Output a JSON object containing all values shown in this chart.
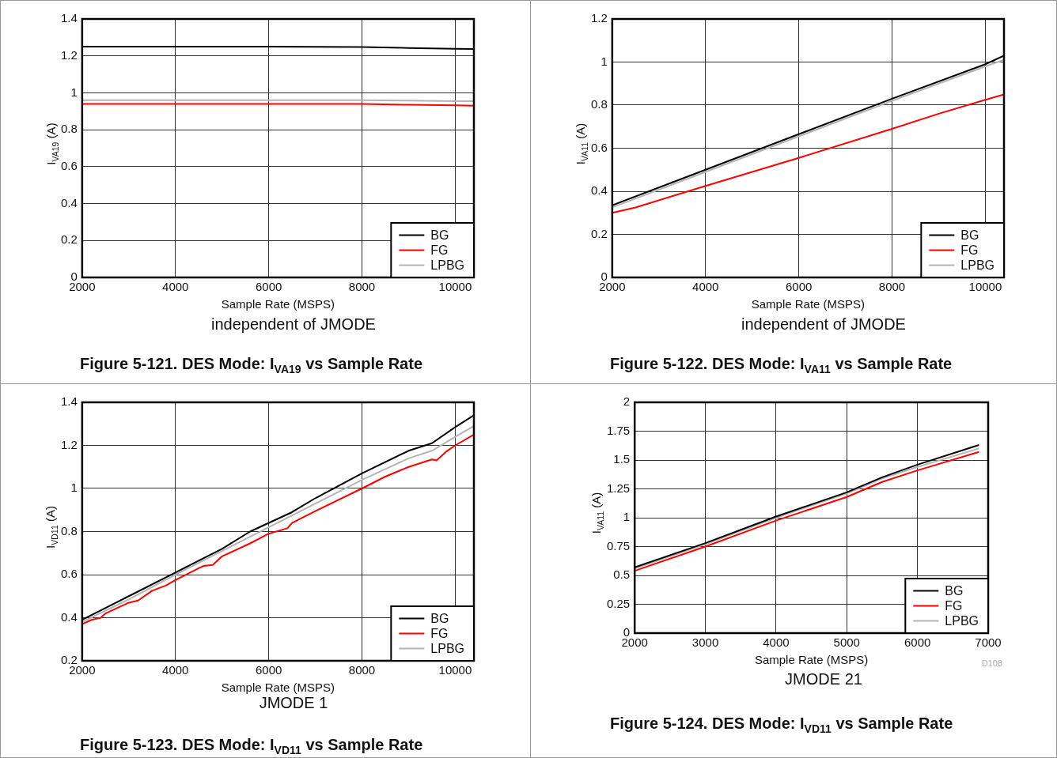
{
  "chart_data": [
    {
      "type": "line",
      "title": "Figure 5-121. DES Mode: I$_{VA19}$ vs Sample Rate",
      "subtitle": "independent of JMODE",
      "xlabel": "Sample Rate (MSPS)",
      "ylabel": "I$_{VA19}$ (A)",
      "xlim": [
        2000,
        10400
      ],
      "xticks": [
        2000,
        4000,
        6000,
        8000,
        10000
      ],
      "ylim": [
        0,
        1.4
      ],
      "yticks": [
        0,
        0.2,
        0.4,
        0.6,
        0.8,
        1,
        1.2,
        1.4
      ],
      "grid": true,
      "legend": "bottom right",
      "line_style": "solid",
      "marker": "none",
      "series": [
        {
          "name": "BG",
          "color": "#000000",
          "x": [
            2000,
            4000,
            6000,
            8000,
            9000,
            10000,
            10400
          ],
          "values": [
            1.25,
            1.25,
            1.25,
            1.248,
            1.243,
            1.238,
            1.237
          ]
        },
        {
          "name": "FG",
          "color": "#ff0000",
          "x": [
            2000,
            4000,
            6000,
            8000,
            9000,
            10000,
            10400
          ],
          "values": [
            0.94,
            0.94,
            0.94,
            0.94,
            0.935,
            0.932,
            0.93
          ]
        },
        {
          "name": "LPBG",
          "color": "#b4b4b4",
          "x": [
            2000,
            4000,
            6000,
            8000,
            9000,
            10000,
            10400
          ],
          "values": [
            0.96,
            0.96,
            0.96,
            0.96,
            0.958,
            0.955,
            0.955
          ]
        }
      ]
    },
    {
      "type": "line",
      "title": "Figure 5-122. DES Mode: I$_{VA11}$ vs Sample Rate",
      "subtitle": "independent of JMODE",
      "xlabel": "Sample Rate (MSPS)",
      "ylabel": "I$_{VA11}$ (A)",
      "xlim": [
        2000,
        10400
      ],
      "xticks": [
        2000,
        4000,
        6000,
        8000,
        10000
      ],
      "ylim": [
        0,
        1.2
      ],
      "yticks": [
        0,
        0.2,
        0.4,
        0.6,
        0.8,
        1,
        1.2
      ],
      "grid": true,
      "legend": "bottom right",
      "line_style": "solid",
      "marker": "none",
      "series": [
        {
          "name": "BG",
          "color": "#000000",
          "x": [
            2000,
            4000,
            6000,
            8000,
            10000,
            10400
          ],
          "values": [
            0.335,
            0.5,
            0.665,
            0.83,
            0.99,
            1.03
          ]
        },
        {
          "name": "FG",
          "color": "#ff0000",
          "x": [
            2000,
            2500,
            4000,
            6000,
            8000,
            9000,
            10000,
            10400
          ],
          "values": [
            0.3,
            0.325,
            0.425,
            0.555,
            0.69,
            0.76,
            0.825,
            0.85
          ]
        },
        {
          "name": "LPBG",
          "color": "#b4b4b4",
          "x": [
            2000,
            4000,
            6000,
            8000,
            10000,
            10400
          ],
          "values": [
            0.325,
            0.49,
            0.655,
            0.82,
            0.98,
            1.01
          ]
        }
      ]
    },
    {
      "type": "line",
      "title": "Figure 5-123. DES Mode: I$_{VD11}$ vs Sample Rate",
      "subtitle": "JMODE 1",
      "xlabel": "Sample Rate (MSPS)",
      "ylabel": "I$_{VD11}$ (A)",
      "xlim": [
        2000,
        10400
      ],
      "xticks": [
        2000,
        4000,
        6000,
        8000,
        10000
      ],
      "ylim": [
        0.2,
        1.4
      ],
      "yticks": [
        0.2,
        0.4,
        0.6,
        0.8,
        1,
        1.2,
        1.4
      ],
      "grid": true,
      "legend": "bottom right",
      "line_style": "solid",
      "marker": "none",
      "series": [
        {
          "name": "BG",
          "color": "#000000",
          "x": [
            2000,
            3000,
            4000,
            5000,
            5600,
            6500,
            7000,
            8000,
            9000,
            9500,
            10000,
            10400
          ],
          "values": [
            0.39,
            0.5,
            0.61,
            0.72,
            0.8,
            0.89,
            0.955,
            1.07,
            1.175,
            1.21,
            1.285,
            1.34
          ]
        },
        {
          "name": "FG",
          "color": "#ff0000",
          "x": [
            2000,
            2200,
            2400,
            2500,
            3000,
            3200,
            3500,
            3800,
            4000,
            4500,
            4600,
            4800,
            5000,
            5600,
            6000,
            6400,
            6500,
            7000,
            8000,
            8500,
            9000,
            9500,
            9600,
            9800,
            10000,
            10400
          ],
          "values": [
            0.37,
            0.39,
            0.4,
            0.42,
            0.47,
            0.48,
            0.525,
            0.55,
            0.575,
            0.63,
            0.64,
            0.645,
            0.685,
            0.745,
            0.79,
            0.815,
            0.84,
            0.895,
            1,
            1.055,
            1.1,
            1.135,
            1.13,
            1.17,
            1.2,
            1.25
          ]
        },
        {
          "name": "LPBG",
          "color": "#b4b4b4",
          "x": [
            2000,
            3000,
            4000,
            5000,
            6000,
            7000,
            8000,
            9000,
            9500,
            10000,
            10400
          ],
          "values": [
            0.38,
            0.485,
            0.6,
            0.71,
            0.82,
            0.93,
            1.04,
            1.14,
            1.175,
            1.24,
            1.29
          ]
        }
      ]
    },
    {
      "type": "line",
      "title": "Figure 5-124. DES Mode: I$_{VD11}$ vs Sample Rate",
      "subtitle": "JMODE 21",
      "xlabel": "Sample Rate (MSPS)",
      "ylabel": "I$_{VA11}$ (A)",
      "annotations": [
        "D108"
      ],
      "xlim": [
        2000,
        7000
      ],
      "xticks": [
        2000,
        3000,
        4000,
        5000,
        6000,
        7000
      ],
      "ylim": [
        0,
        2
      ],
      "yticks": [
        0,
        0.25,
        0.5,
        0.75,
        1,
        1.25,
        1.5,
        1.75,
        2
      ],
      "grid": true,
      "legend": "bottom right",
      "line_style": "solid",
      "marker": "none",
      "series": [
        {
          "name": "BG",
          "color": "#000000",
          "x": [
            2000,
            3000,
            4000,
            5000,
            5500,
            6000,
            6870
          ],
          "values": [
            0.57,
            0.78,
            1.01,
            1.22,
            1.35,
            1.46,
            1.63
          ]
        },
        {
          "name": "FG",
          "color": "#ff0000",
          "x": [
            2000,
            3000,
            4000,
            5000,
            5500,
            6000,
            6870
          ],
          "values": [
            0.54,
            0.75,
            0.975,
            1.18,
            1.31,
            1.41,
            1.57
          ]
        },
        {
          "name": "LPBG",
          "color": "#b4b4b4",
          "x": [
            2000,
            3000,
            4000,
            5000,
            5500,
            6000,
            6870
          ],
          "values": [
            0.56,
            0.77,
            1,
            1.21,
            1.34,
            1.44,
            1.6
          ]
        }
      ]
    }
  ]
}
